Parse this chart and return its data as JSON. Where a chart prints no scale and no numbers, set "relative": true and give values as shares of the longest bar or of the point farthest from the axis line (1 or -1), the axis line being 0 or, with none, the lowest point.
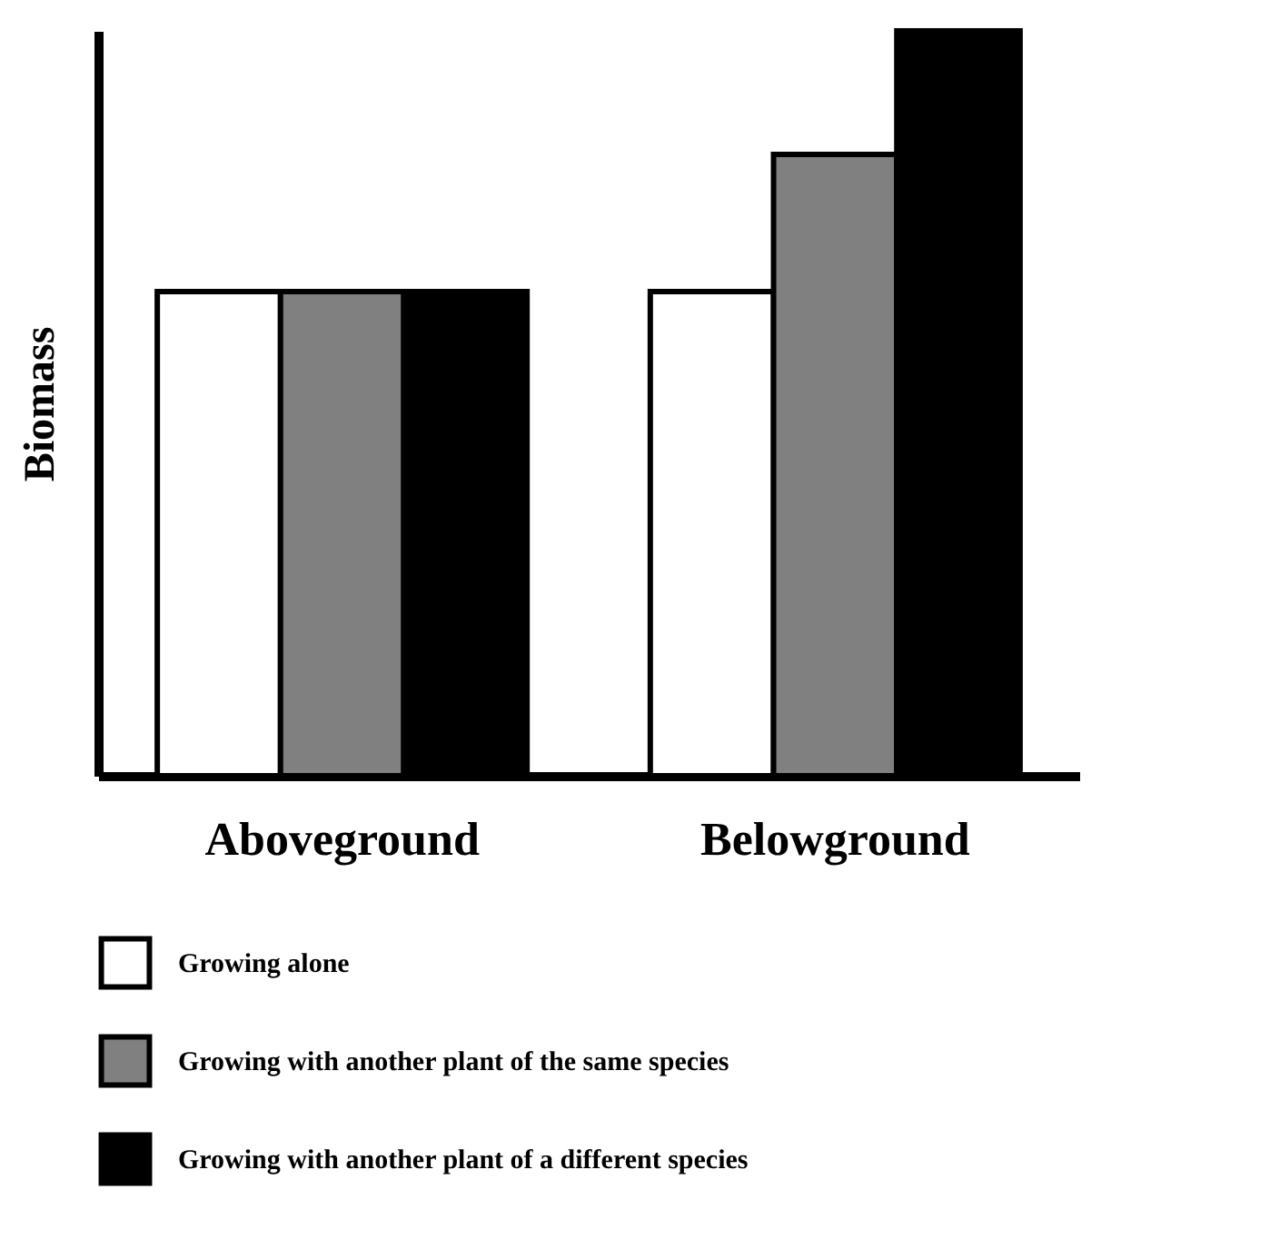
{
  "chart_data": {
    "type": "bar",
    "relative": true,
    "ylabel": "Biomass",
    "categories": [
      "Aboveground",
      "Belowground"
    ],
    "legend": "bottom",
    "series": [
      {
        "name": "Growing alone",
        "color": "#ffffff",
        "values": [
          0.65,
          0.65
        ]
      },
      {
        "name": "Growing with another plant of the same species",
        "color": "#808080",
        "values": [
          0.65,
          0.834
        ]
      },
      {
        "name": "Growing with another plant of a different species",
        "color": "#000000",
        "values": [
          0.65,
          1
        ]
      }
    ]
  }
}
